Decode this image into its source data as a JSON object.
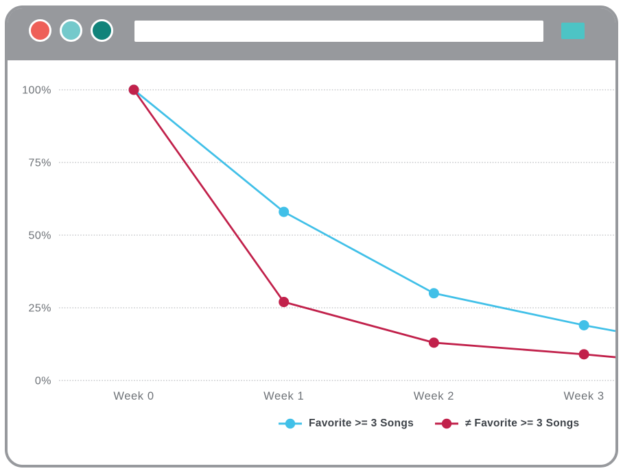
{
  "browser": {
    "chrome_color": "#97999D",
    "buttons": [
      {
        "name": "window-button-close",
        "color": "#EE5F58"
      },
      {
        "name": "window-button-minimize",
        "color": "#74C9CB"
      },
      {
        "name": "window-button-maximize",
        "color": "#11837A"
      }
    ],
    "address_bar_value": "",
    "action_button_color": "#4DC4C5"
  },
  "chart_data": {
    "type": "line",
    "categories": [
      "Week 0",
      "Week 1",
      "Week 2",
      "Week 3"
    ],
    "y_ticks": [
      "100%",
      "75%",
      "50%",
      "25%",
      "0%"
    ],
    "y_tick_values": [
      100,
      75,
      50,
      25,
      0
    ],
    "ylim": [
      0,
      100
    ],
    "grid": "horizontal dotted only",
    "legend_position": "bottom",
    "series": [
      {
        "name": "Favorite >= 3 Songs",
        "color": "#41C0E8",
        "values": [
          100,
          58,
          30,
          19
        ],
        "edge_value": 17
      },
      {
        "name": "≠ Favorite >= 3 Songs",
        "color": "#C1214B",
        "values": [
          100,
          27,
          13,
          9
        ],
        "edge_value": 8
      }
    ],
    "tick_label_color": "#6E7277",
    "gridline_color": "#C5C7CA"
  }
}
